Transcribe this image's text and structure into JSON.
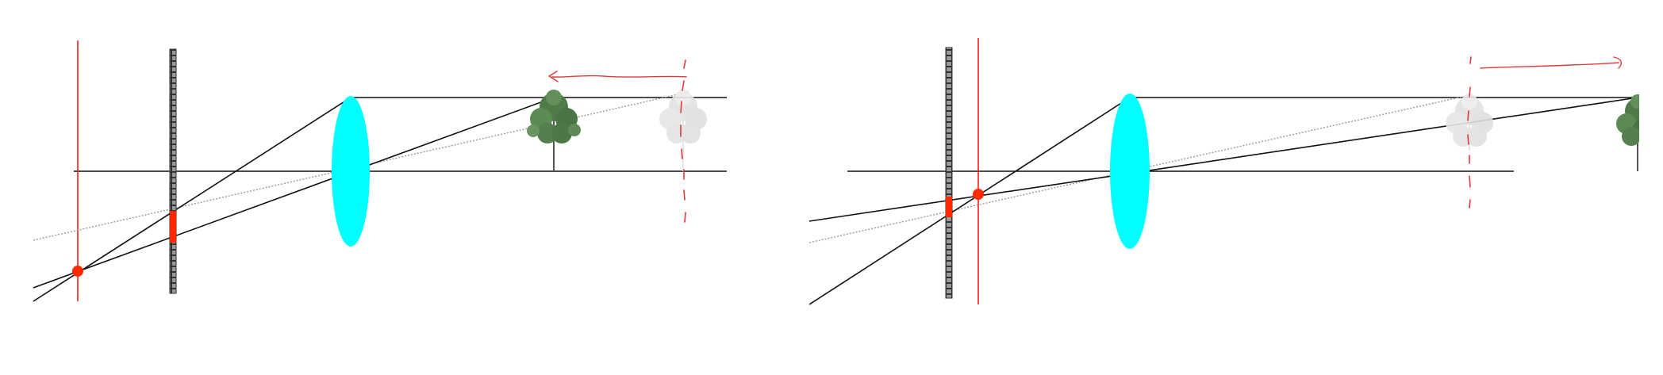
{
  "colors": {
    "background": "#ffffff",
    "ray": "#111111",
    "dotted_ray": "#9a9a9a",
    "lens": "#00ffff",
    "sensor_fill": "#9a9a9a",
    "sensor_grid": "#333333",
    "image_bar": "#ff2a00",
    "focal_line": "#ff1a1a",
    "annotation": "#e03a3a",
    "tree_real": "#4f7a4a",
    "tree_trunk": "#555555",
    "tree_ghost": "#dedede"
  },
  "panels": [
    {
      "name": "left-panel",
      "object": "tree-real",
      "virtual_object": "tree-ghost",
      "annotation_arrow_direction": "left"
    },
    {
      "name": "right-panel",
      "object": "tree-real",
      "virtual_object": "tree-ghost",
      "annotation_arrow_direction": "right"
    }
  ]
}
